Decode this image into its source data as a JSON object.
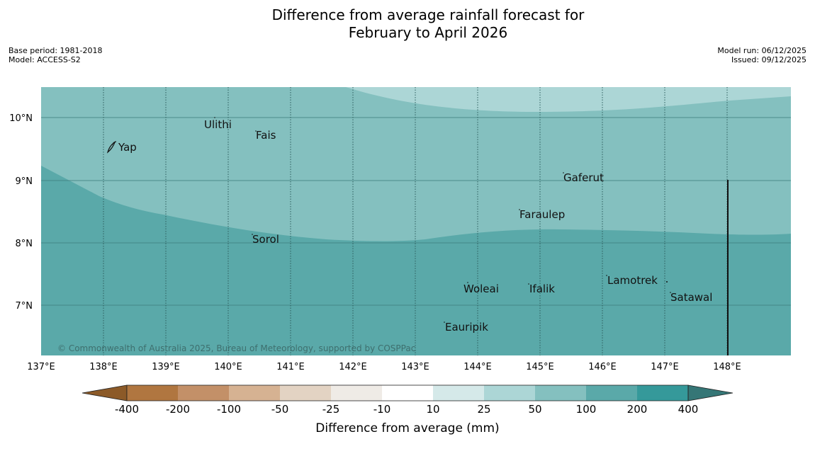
{
  "title": {
    "line1": "Difference from average rainfall forecast for",
    "line2": "February to April 2026"
  },
  "meta_left": {
    "base_period": "Base period: 1981-2018",
    "model": "Model: ACCESS-S2"
  },
  "meta_right": {
    "model_run": "Model run: 06/12/2025",
    "issued": "Issued: 09/12/2025"
  },
  "axes": {
    "lat_labels": [
      "10°N",
      "9°N",
      "8°N",
      "7°N"
    ],
    "lon_labels": [
      "137°E",
      "138°E",
      "139°E",
      "140°E",
      "141°E",
      "142°E",
      "143°E",
      "144°E",
      "145°E",
      "146°E",
      "147°E",
      "148°E"
    ]
  },
  "places": {
    "yap": "Yap",
    "ulithi": "Ulithi",
    "fais": "Fais",
    "gaferut": "Gaferut",
    "faraulep": "Faraulep",
    "sorol": "Sorol",
    "lamotrek": "Lamotrek",
    "woleai": "Woleai",
    "ifalik": "Ifalik",
    "satawal": "Satawal",
    "eauripik": "Eauripik"
  },
  "copyright": "© Commonwealth of Australia 2025, Bureau of Meteorology, supported by COSPPac",
  "colorbar": {
    "tick_labels": [
      "-400",
      "-200",
      "-100",
      "-50",
      "-25",
      "-10",
      "10",
      "25",
      "50",
      "100",
      "200",
      "400"
    ],
    "label": "Difference from average (mm)",
    "colors": [
      "#8c5a28",
      "#b07640",
      "#c39068",
      "#d6b292",
      "#e3d3c3",
      "#efebe6",
      "#ffffff",
      "#d5e9e9",
      "#acd6d6",
      "#84c0bf",
      "#5aa9a9",
      "#35999a",
      "#357676"
    ]
  },
  "legend_map_colors": {
    "band_25_50": "#acd6d6",
    "band_50_100": "#84c0bf",
    "band_100_200": "#5aa9a9"
  }
}
